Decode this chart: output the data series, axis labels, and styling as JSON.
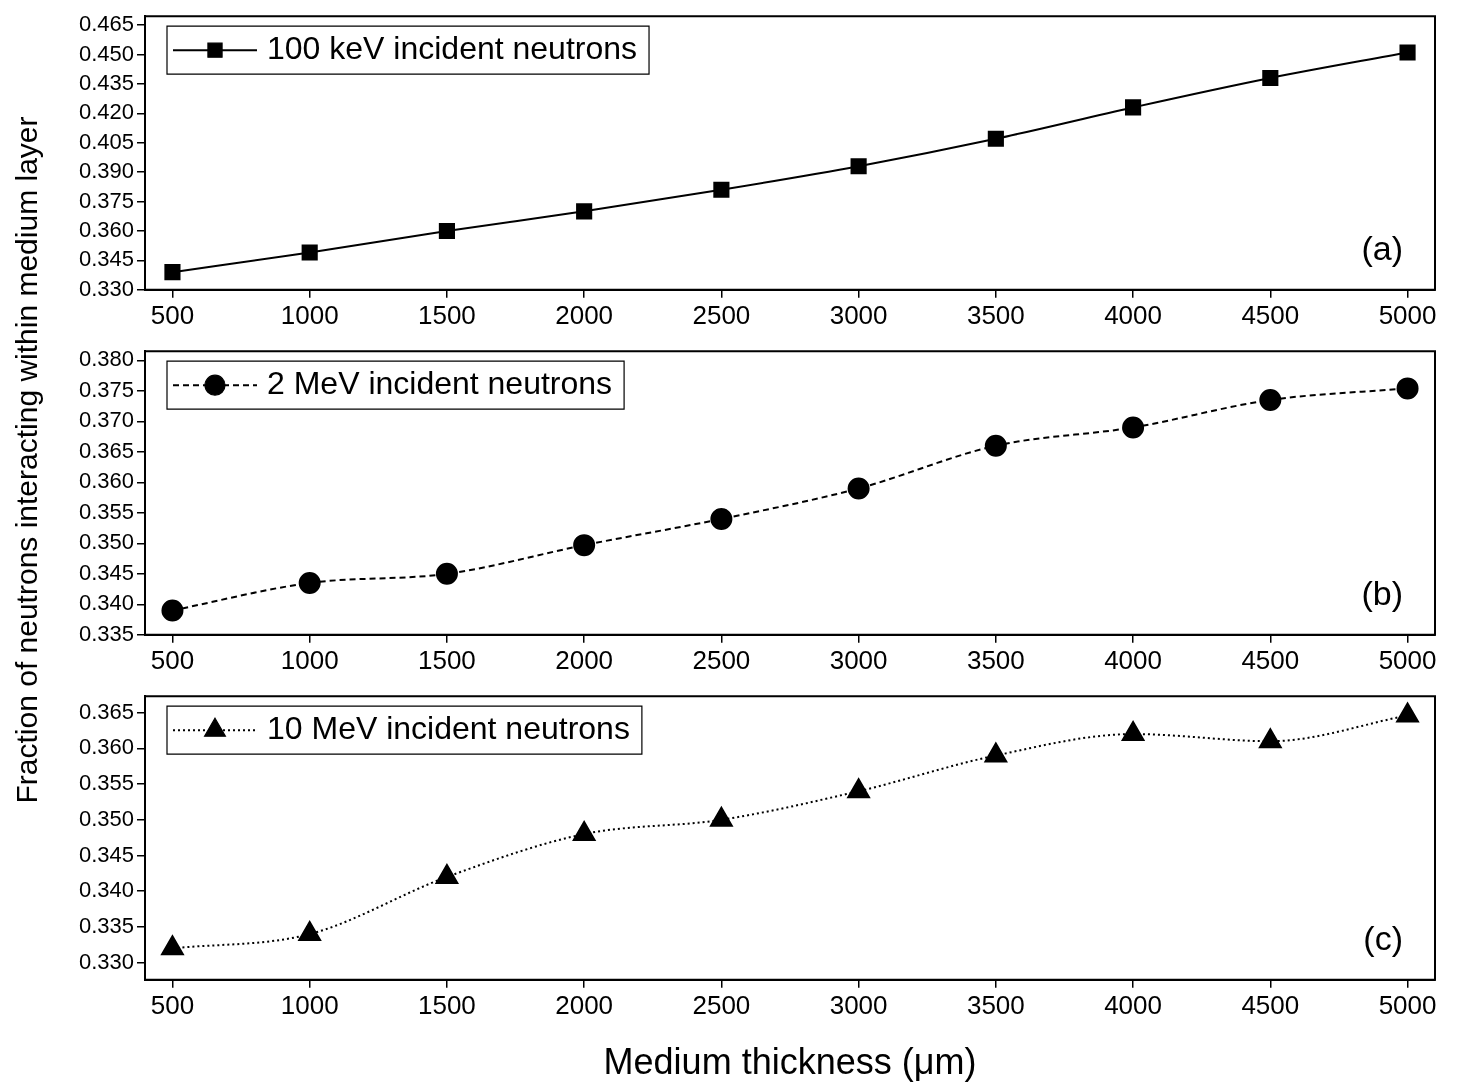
{
  "chart_data": [
    {
      "type": "line",
      "ylabel": "Fraction of neutrons interacting within medium layer",
      "x": [
        500,
        1000,
        1500,
        2000,
        2500,
        3000,
        3500,
        4000,
        4500,
        5000
      ],
      "series": [
        {
          "name": "100 keV incident neutrons",
          "color": "#000000",
          "marker": "square",
          "line_style": "solid",
          "values": [
            0.339,
            0.349,
            0.36,
            0.37,
            0.381,
            0.393,
            0.407,
            0.423,
            0.438,
            0.451
          ]
        }
      ],
      "xlim": [
        400,
        5100
      ],
      "xticks": [
        500,
        1000,
        1500,
        2000,
        2500,
        3000,
        3500,
        4000,
        4500,
        5000
      ],
      "ylim": [
        0.33,
        0.4695
      ],
      "yticks": [
        {
          "value": 0.33,
          "label": "0.330"
        },
        0.345,
        {
          "value": 0.36,
          "label": "0.360"
        },
        0.375,
        {
          "value": 0.39,
          "label": "0.390"
        },
        0.405,
        {
          "value": 0.42,
          "label": "0.420"
        },
        0.435,
        {
          "value": 0.45,
          "label": "0.450"
        },
        0.465
      ],
      "legend": "top left",
      "grid": false,
      "annotations": [
        "(a)"
      ]
    },
    {
      "type": "line",
      "x": [
        500,
        1000,
        1500,
        2000,
        2500,
        3000,
        3500,
        4000,
        4500,
        5000
      ],
      "series": [
        {
          "name": "2 MeV incident neutrons",
          "color": "#000000",
          "marker": "circle",
          "line_style": "dashed",
          "values": [
            0.339,
            0.3435,
            0.345,
            0.3497,
            0.354,
            0.359,
            0.366,
            0.369,
            0.3735,
            0.3754
          ]
        }
      ],
      "xlim": [
        400,
        5100
      ],
      "xticks": [
        500,
        1000,
        1500,
        2000,
        2500,
        3000,
        3500,
        4000,
        4500,
        5000
      ],
      "ylim": [
        0.335,
        0.3815
      ],
      "yticks": [
        0.335,
        {
          "value": 0.34,
          "label": "0.340"
        },
        0.345,
        {
          "value": 0.35,
          "label": "0.350"
        },
        0.355,
        {
          "value": 0.36,
          "label": "0.360"
        },
        0.365,
        {
          "value": 0.37,
          "label": "0.370"
        },
        0.375,
        {
          "value": 0.38,
          "label": "0.380"
        }
      ],
      "legend": "top left",
      "grid": false,
      "annotations": [
        "(b)"
      ]
    },
    {
      "type": "line",
      "xlabel": "Medium thickness (μm)",
      "x": [
        500,
        1000,
        1500,
        2000,
        2500,
        3000,
        3500,
        4000,
        4500,
        5000
      ],
      "series": [
        {
          "name": "10 MeV incident neutrons",
          "color": "#000000",
          "marker": "triangle",
          "line_style": "dotted",
          "values": [
            0.332,
            0.334,
            0.342,
            0.348,
            0.35,
            0.354,
            0.359,
            0.362,
            0.361,
            0.3646
          ]
        }
      ],
      "xlim": [
        400,
        5100
      ],
      "xticks": [
        500,
        1000,
        1500,
        2000,
        2500,
        3000,
        3500,
        4000,
        4500,
        5000
      ],
      "ylim": [
        0.3276,
        0.3673
      ],
      "yticks": [
        {
          "value": 0.33,
          "label": "0.330"
        },
        0.335,
        {
          "value": 0.34,
          "label": "0.340"
        },
        0.345,
        {
          "value": 0.35,
          "label": "0.350"
        },
        0.355,
        {
          "value": 0.36,
          "label": "0.360"
        },
        0.365
      ],
      "legend": "top left",
      "grid": false,
      "annotations": [
        "(c)"
      ]
    }
  ]
}
